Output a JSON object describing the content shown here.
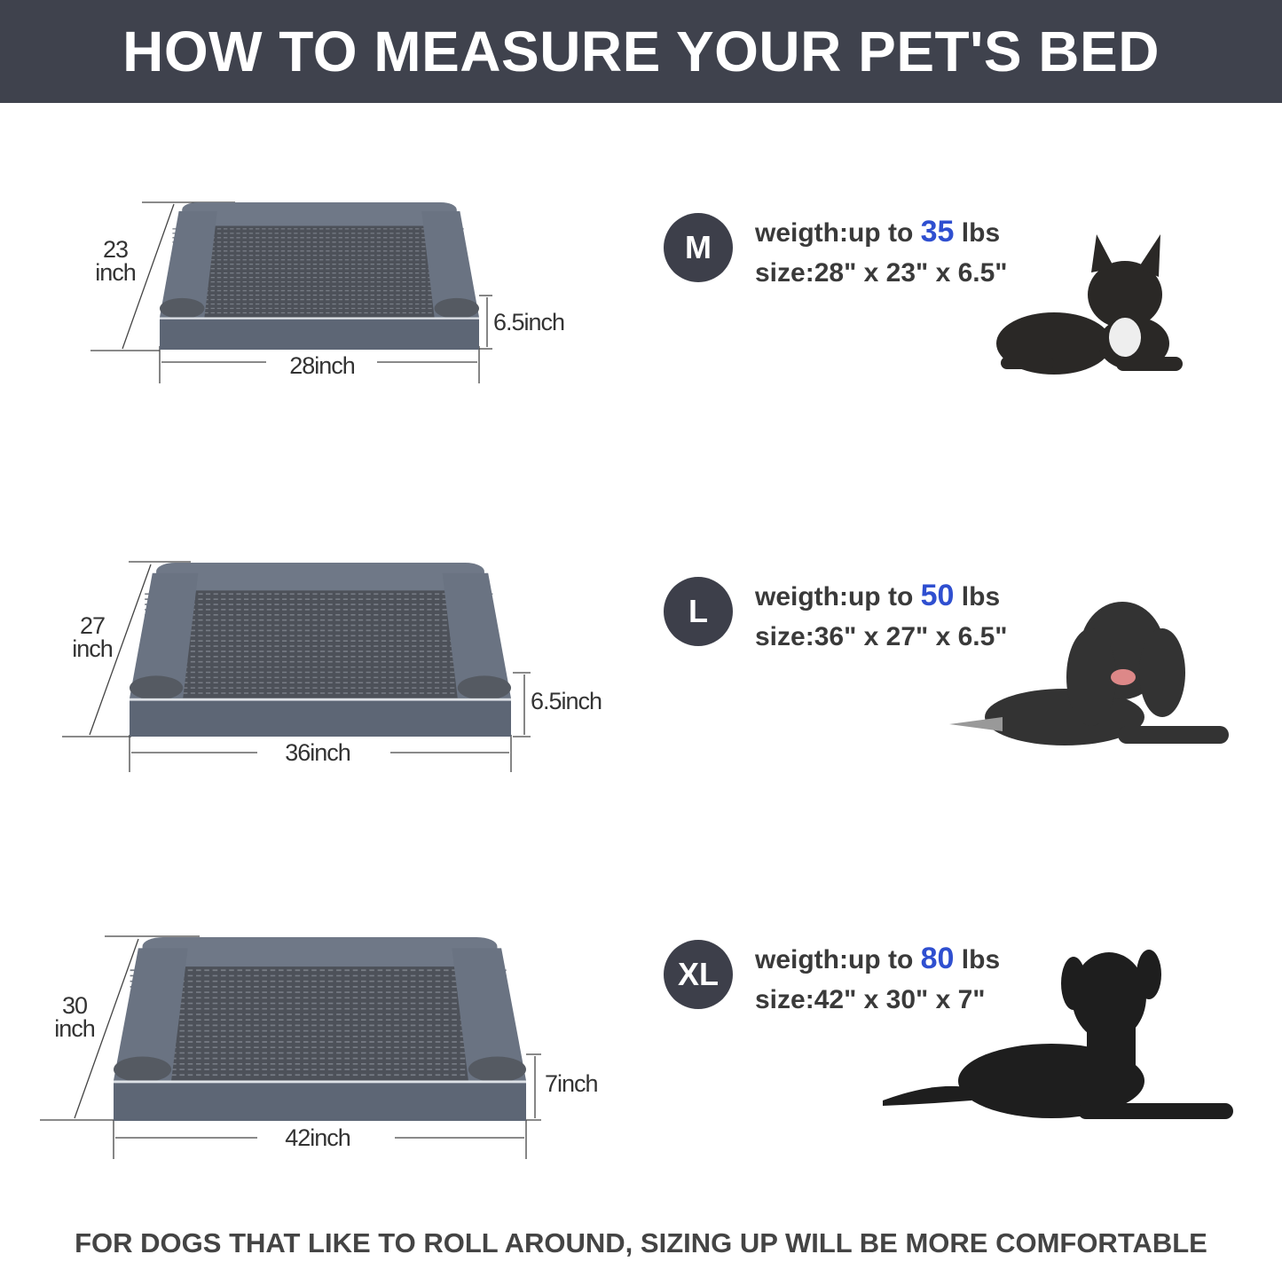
{
  "header": {
    "title": "HOW TO MEASURE YOUR PET'S BED"
  },
  "sizes": [
    {
      "badge": "M",
      "weight_prefix": "weigth:up to ",
      "weight_value": "35",
      "weight_unit": " lbs",
      "size": "size:28\" x 23\" x 6.5\"",
      "depth_num": "23",
      "depth_unit": "inch",
      "height": "6.5inch",
      "width": "28inch",
      "dog": "french-bulldog"
    },
    {
      "badge": "L",
      "weight_prefix": "weigth:up to ",
      "weight_value": "50",
      "weight_unit": " lbs",
      "size": "size:36\" x 27\" x 6.5\"",
      "depth_num": "27",
      "depth_unit": "inch",
      "height": "6.5inch",
      "width": "36inch",
      "dog": "cocker-spaniel"
    },
    {
      "badge": "XL",
      "weight_prefix": "weigth:up to ",
      "weight_value": "80",
      "weight_unit": " lbs",
      "size": "size:42\" x 30\" x 7\"",
      "depth_num": "30",
      "depth_unit": "inch",
      "height": "7inch",
      "width": "42inch",
      "dog": "labrador"
    }
  ],
  "footer": {
    "text": "FOR DOGS THAT LIKE TO ROLL AROUND, SIZING UP WILL BE MORE COMFORTABLE"
  },
  "colors": {
    "header_bg": "#3f424d",
    "badge_bg": "#3d3f4a",
    "accent": "#2f4fd0",
    "bed": "#5d6675"
  }
}
